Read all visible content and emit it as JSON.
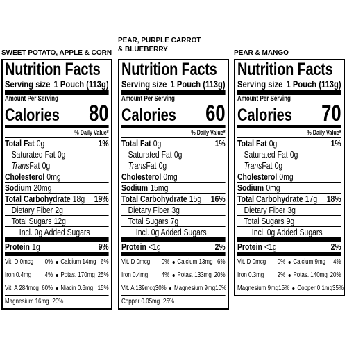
{
  "panels": [
    {
      "heading": [
        "SWEET POTATO, APPLE & CORN"
      ],
      "title": "Nutrition Facts",
      "serving_label": "Serving size",
      "serving": "1 Pouch (113g)",
      "amount_per_serving": "Amount Per Serving",
      "calories_label": "Calories",
      "calories": 80,
      "dv_header": "% Daily Value*",
      "nutrients": [
        {
          "label": "Total Fat",
          "amount": "0g",
          "dv": "1%"
        },
        {
          "label": "Saturated Fat",
          "amount": "0g"
        },
        {
          "prefix": "Trans",
          "label": "Fat",
          "amount": "0g"
        },
        {
          "label": "Cholesterol",
          "amount": "0mg"
        },
        {
          "label": "Sodium",
          "amount": "20mg"
        },
        {
          "label": "Total Carbohydrate",
          "amount": "18g",
          "dv": "19%"
        },
        {
          "label": "Dietary Fiber",
          "amount": "2g"
        },
        {
          "label": "Total Sugars",
          "amount": "12g"
        },
        {
          "label": "Incl. 0g Added Sugars"
        }
      ],
      "protein": {
        "label": "Protein",
        "amount": "1g",
        "dv": "9%"
      },
      "micronutrients": [
        [
          {
            "name": "Vit. D 0mcg",
            "dv": "0%"
          },
          {
            "name": "Calcium 14mg",
            "dv": "6%"
          }
        ],
        [
          {
            "name": "Iron 0.4mg",
            "dv": "4%"
          },
          {
            "name": "Potas. 170mg",
            "dv": "25%"
          }
        ],
        [
          {
            "name": "Vit. A 284mcg",
            "dv": "60%"
          },
          {
            "name": "Niacin 0.6mg",
            "dv": "15%"
          }
        ],
        [
          {
            "name": "Magnesium 16mg",
            "dv": "20%"
          }
        ]
      ]
    },
    {
      "heading": [
        "PEAR, PURPLE CARROT",
        "& BLUEBERRY"
      ],
      "title": "Nutrition Facts",
      "serving_label": "Serving size",
      "serving": "1 Pouch (113g)",
      "amount_per_serving": "Amount Per Serving",
      "calories_label": "Calories",
      "calories": 60,
      "dv_header": "% Daily Value*",
      "nutrients": [
        {
          "label": "Total Fat",
          "amount": "0g",
          "dv": "1%"
        },
        {
          "label": "Saturated Fat",
          "amount": "0g"
        },
        {
          "prefix": "Trans",
          "label": "Fat",
          "amount": "0g"
        },
        {
          "label": "Cholesterol",
          "amount": "0mg"
        },
        {
          "label": "Sodium",
          "amount": "15mg"
        },
        {
          "label": "Total Carbohydrate",
          "amount": "15g",
          "dv": "16%"
        },
        {
          "label": "Dietary Fiber",
          "amount": "3g"
        },
        {
          "label": "Total Sugars",
          "amount": "7g"
        },
        {
          "label": "Incl. 0g Added Sugars"
        }
      ],
      "protein": {
        "label": "Protein",
        "amount": "<1g",
        "dv": "2%"
      },
      "micronutrients": [
        [
          {
            "name": "Vit. D 0mcg",
            "dv": "0%"
          },
          {
            "name": "Calcium 13mg",
            "dv": "6%"
          }
        ],
        [
          {
            "name": "Iron 0.4mg",
            "dv": "4%"
          },
          {
            "name": "Potas. 133mg",
            "dv": "20%"
          }
        ],
        [
          {
            "name": "Vit. A 139mcg",
            "dv": "30%"
          },
          {
            "name": "Magnesium 9mg",
            "dv": "10%"
          }
        ],
        [
          {
            "name": "Copper 0.05mg",
            "dv": "25%"
          }
        ]
      ]
    },
    {
      "heading": [
        "PEAR & MANGO"
      ],
      "title": "Nutrition Facts",
      "serving_label": "Serving size",
      "serving": "1 Pouch (113g)",
      "amount_per_serving": "Amount Per Serving",
      "calories_label": "Calories",
      "calories": 70,
      "dv_header": "% Daily Value*",
      "nutrients": [
        {
          "label": "Total Fat",
          "amount": "0g",
          "dv": "1%"
        },
        {
          "label": "Saturated Fat",
          "amount": "0g"
        },
        {
          "prefix": "Trans",
          "label": "Fat",
          "amount": "0g"
        },
        {
          "label": "Cholesterol",
          "amount": "0mg"
        },
        {
          "label": "Sodium",
          "amount": "0mg"
        },
        {
          "label": "Total Carbohydrate",
          "amount": "17g",
          "dv": "18%"
        },
        {
          "label": "Dietary Fiber",
          "amount": "3g"
        },
        {
          "label": "Total Sugars",
          "amount": "9g"
        },
        {
          "label": "Incl. 0g Added Sugars"
        }
      ],
      "protein": {
        "label": "Protein",
        "amount": "<1g",
        "dv": "2%"
      },
      "micronutrients": [
        [
          {
            "name": "Vit. D 0mcg",
            "dv": "0%"
          },
          {
            "name": "Calcium 9mg",
            "dv": "4%"
          }
        ],
        [
          {
            "name": "Iron 0.3mg",
            "dv": "2%"
          },
          {
            "name": "Potas. 140mg",
            "dv": "20%"
          }
        ],
        [
          {
            "name": "Magnesium 9mg",
            "dv": "15%"
          },
          {
            "name": "Copper 0.1mg",
            "dv": "35%"
          }
        ]
      ]
    }
  ]
}
